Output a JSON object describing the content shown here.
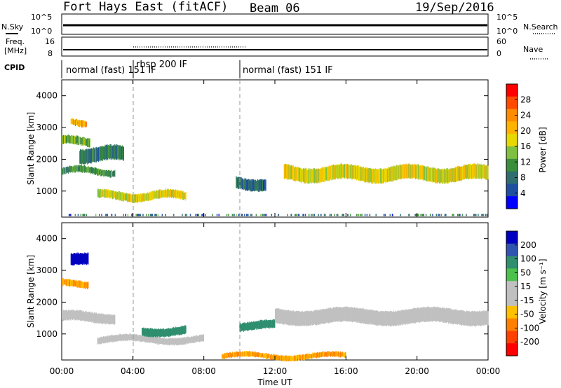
{
  "header": {
    "radar": "Fort Hays East (fitACF)",
    "beam": "Beam 06",
    "date": "19/Sep/2016"
  },
  "noise_panel": {
    "left_label": "N.Sky",
    "right_label": "N.Search",
    "left_ticks": [
      "10^5",
      "10^0"
    ],
    "right_ticks": [
      "10^5",
      "10^0"
    ]
  },
  "freq_panel": {
    "left_label_1": "Freq.",
    "left_label_2": "[MHz]",
    "right_label": "Nave",
    "left_ticks": [
      "16",
      "8"
    ],
    "right_ticks": [
      "60",
      "0"
    ]
  },
  "cpid_panel": {
    "label": "CPID",
    "modes": [
      "normal (fast) 151 IF",
      "rbsp 200 IF",
      "normal (fast) 151 IF"
    ]
  },
  "power_panel": {
    "ylabel": "Slant Range [km]",
    "yticks": [
      "4000",
      "3000",
      "2000",
      "1000"
    ],
    "cbar_label": "Power [dB]",
    "cbar_ticks": [
      "28",
      "24",
      "20",
      "16",
      "12",
      "8",
      "4"
    ],
    "cbar_colors": [
      "#ff0000",
      "#ff4a00",
      "#ff8c00",
      "#ffb300",
      "#e6d800",
      "#80c040",
      "#3a8f3a",
      "#2f6e6e",
      "#1e4fa0",
      "#0000ff"
    ]
  },
  "velocity_panel": {
    "ylabel": "Slant Range [km]",
    "yticks": [
      "4000",
      "3000",
      "2000",
      "1000"
    ],
    "cbar_label": "Velocity [m s⁻¹]",
    "cbar_ticks": [
      "200",
      "100",
      "50",
      "15",
      "-15",
      "-50",
      "-100",
      "-200"
    ],
    "cbar_colors": [
      "#0000c0",
      "#2f55b0",
      "#2f8f6f",
      "#4cc24c",
      "#c0c0c0",
      "#c0c0c0",
      "#ffc000",
      "#ff8000",
      "#ff4000",
      "#ff0000"
    ]
  },
  "x_axis": {
    "ticks": [
      "00:00",
      "04:00",
      "08:00",
      "12:00",
      "16:00",
      "20:00",
      "00:00"
    ],
    "label": "Time UT"
  },
  "chart_data": {
    "type": "heatmap",
    "title": "Fort Hays East (fitACF) Beam 06 19/Sep/2016",
    "xlabel": "Time UT",
    "ylabel": "Slant Range [km]",
    "xlim_hours": [
      0,
      24
    ],
    "ylim_km": [
      180,
      4500
    ],
    "mode_changes_hours": [
      4.0,
      10.0
    ],
    "power_bands": [
      {
        "t0": 0.0,
        "t1": 3.0,
        "r_start": 1500,
        "r_end": 1750,
        "level": 12
      },
      {
        "t0": 0.0,
        "t1": 1.6,
        "r_start": 2400,
        "r_end": 2700,
        "level": 14
      },
      {
        "t0": 0.5,
        "t1": 1.4,
        "r_start": 3050,
        "r_end": 3300,
        "level": 22
      },
      {
        "t0": 1.0,
        "t1": 3.5,
        "r_start": 1900,
        "r_end": 2400,
        "level": 10
      },
      {
        "t0": 2.0,
        "t1": 7.0,
        "r_start": 700,
        "r_end": 1000,
        "level": 18
      },
      {
        "t0": 9.8,
        "t1": 11.5,
        "r_start": 1050,
        "r_end": 1450,
        "level": 8
      },
      {
        "t0": 12.5,
        "t1": 24.0,
        "r_start": 1300,
        "r_end": 1800,
        "level": 18
      }
    ],
    "velocity_bands": [
      {
        "t0": 0.5,
        "t1": 1.5,
        "r_start": 3100,
        "r_end": 3500,
        "velocity": 200
      },
      {
        "t0": 0.0,
        "t1": 3.0,
        "r_start": 1350,
        "r_end": 1700,
        "velocity": 0
      },
      {
        "t0": 0.0,
        "t1": 1.5,
        "r_start": 2450,
        "r_end": 2700,
        "velocity": -50
      },
      {
        "t0": 2.0,
        "t1": 8.0,
        "r_start": 700,
        "r_end": 950,
        "velocity": 0
      },
      {
        "t0": 4.5,
        "t1": 7.0,
        "r_start": 950,
        "r_end": 1250,
        "velocity": 50
      },
      {
        "t0": 10.0,
        "t1": 12.0,
        "r_start": 1100,
        "r_end": 1400,
        "velocity": 50
      },
      {
        "t0": 12.0,
        "t1": 24.0,
        "r_start": 1300,
        "r_end": 1800,
        "velocity": 0
      },
      {
        "t0": 9.0,
        "t1": 16.0,
        "r_start": 200,
        "r_end": 400,
        "velocity": -50
      }
    ]
  }
}
